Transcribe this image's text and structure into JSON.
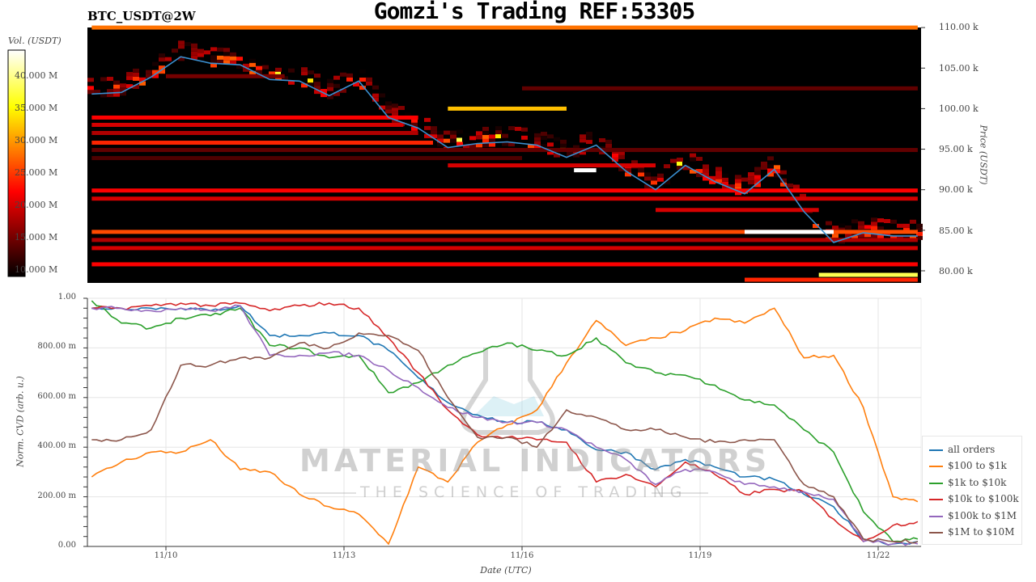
{
  "header": {
    "title": "Gomzi's Trading REF:53305",
    "pair": "BTC_USDT@2W"
  },
  "watermark": {
    "line1": "MATERIAL INDICATORS",
    "line2": "THE SCIENCE OF TRADING"
  },
  "chart_data": [
    {
      "type": "heatmap",
      "title": "BTC_USDT@2W",
      "ylabel": "Price (USDT)",
      "ylim_k": [
        78.5,
        110
      ],
      "yticks": [
        "80.00 k",
        "85.00 k",
        "90.00 k",
        "95.00 k",
        "100.00 k",
        "105.00 k",
        "110.00 k"
      ],
      "colorbar": {
        "label": "Vol. (USDT)",
        "range_M": [
          9,
          44
        ],
        "colormap": "hot",
        "ticks": [
          "10.000 M",
          "15.000 M",
          "20.000 M",
          "25.000 M",
          "30.000 M",
          "35.000 M",
          "40.000 M"
        ]
      },
      "price_line_color": "#3a8fd0",
      "liquidity_bands": [
        {
          "price_k": 110.0,
          "vol_M": 28,
          "from": "11/08 18:00",
          "to": "11/22 16:00"
        },
        {
          "price_k": 104.0,
          "vol_M": 15,
          "from": "11/10 00:00",
          "to": "11/12 00:00"
        },
        {
          "price_k": 102.5,
          "vol_M": 14,
          "from": "11/16 00:00",
          "to": "11/22 16:00"
        },
        {
          "price_k": 100.0,
          "vol_M": 32,
          "from": "11/14 18:00",
          "to": "11/16 18:00"
        },
        {
          "price_k": 98.9,
          "vol_M": 22,
          "from": "11/08 18:00",
          "to": "11/14 06:00"
        },
        {
          "price_k": 98.0,
          "vol_M": 20,
          "from": "11/08 18:00",
          "to": "11/14 00:00"
        },
        {
          "price_k": 97.0,
          "vol_M": 18,
          "from": "11/08 18:00",
          "to": "11/14 06:00"
        },
        {
          "price_k": 95.8,
          "vol_M": 24,
          "from": "11/08 18:00",
          "to": "11/14 12:00"
        },
        {
          "price_k": 94.9,
          "vol_M": 14,
          "from": "11/08 18:00",
          "to": "11/22 16:00"
        },
        {
          "price_k": 93.9,
          "vol_M": 13,
          "from": "11/08 18:00",
          "to": "11/16 00:00"
        },
        {
          "price_k": 93.0,
          "vol_M": 20,
          "from": "11/14 18:00",
          "to": "11/18 06:00"
        },
        {
          "price_k": 92.4,
          "vol_M": 44,
          "from": "11/16 21:00",
          "to": "11/17 06:00"
        },
        {
          "price_k": 89.9,
          "vol_M": 22,
          "from": "11/08 18:00",
          "to": "11/22 16:00"
        },
        {
          "price_k": 88.9,
          "vol_M": 20,
          "from": "11/08 18:00",
          "to": "11/22 16:00"
        },
        {
          "price_k": 87.5,
          "vol_M": 20,
          "from": "11/18 06:00",
          "to": "11/21 00:00"
        },
        {
          "price_k": 84.8,
          "vol_M": 26,
          "from": "11/08 18:00",
          "to": "11/22 16:00"
        },
        {
          "price_k": 84.8,
          "vol_M": 44,
          "from": "11/19 18:00",
          "to": "11/21 06:00"
        },
        {
          "price_k": 83.8,
          "vol_M": 18,
          "from": "11/08 18:00",
          "to": "11/22 16:00"
        },
        {
          "price_k": 82.8,
          "vol_M": 20,
          "from": "11/08 18:00",
          "to": "11/22 16:00"
        },
        {
          "price_k": 80.8,
          "vol_M": 22,
          "from": "11/08 18:00",
          "to": "11/22 16:00"
        },
        {
          "price_k": 79.5,
          "vol_M": 38,
          "from": "11/21 00:00",
          "to": "11/22 16:00"
        },
        {
          "price_k": 78.9,
          "vol_M": 24,
          "from": "11/19 18:00",
          "to": "11/22 16:00"
        }
      ],
      "price": {
        "x": [
          "11/08 18:00",
          "11/09 06:00",
          "11/09 18:00",
          "11/10 06:00",
          "11/10 18:00",
          "11/11 06:00",
          "11/11 18:00",
          "11/12 06:00",
          "11/12 18:00",
          "11/13 06:00",
          "11/13 18:00",
          "11/14 06:00",
          "11/14 18:00",
          "11/15 06:00",
          "11/15 18:00",
          "11/16 06:00",
          "11/16 18:00",
          "11/17 06:00",
          "11/17 18:00",
          "11/18 06:00",
          "11/18 18:00",
          "11/19 06:00",
          "11/19 18:00",
          "11/20 06:00",
          "11/20 18:00",
          "11/21 06:00",
          "11/21 18:00",
          "11/22 06:00",
          "11/22 16:00"
        ],
        "y_k": [
          101.8,
          102.0,
          103.9,
          106.4,
          105.6,
          105.4,
          103.6,
          103.4,
          101.6,
          103.4,
          98.9,
          97.6,
          95.2,
          95.7,
          95.9,
          95.5,
          94.0,
          95.5,
          92.3,
          90.0,
          93.0,
          91.0,
          89.5,
          92.5,
          87.3,
          83.5,
          84.7,
          84.3,
          84.3
        ]
      }
    },
    {
      "type": "line",
      "xlabel": "Date (UTC)",
      "ylabel": "Norm. CVD (arb. u.)",
      "ylim": [
        0,
        1
      ],
      "yticks": [
        "0.00",
        "200.00 m",
        "400.00 m",
        "600.00 m",
        "800.00 m",
        "1.00"
      ],
      "xticks": [
        "11/10",
        "11/13",
        "11/16",
        "11/19",
        "11/22"
      ],
      "grid": true,
      "legend_position": "right",
      "x": [
        "11/08 18:00",
        "11/09 06:00",
        "11/09 18:00",
        "11/10 06:00",
        "11/10 18:00",
        "11/11 06:00",
        "11/11 18:00",
        "11/12 06:00",
        "11/12 18:00",
        "11/13 06:00",
        "11/13 18:00",
        "11/14 06:00",
        "11/14 18:00",
        "11/15 06:00",
        "11/15 18:00",
        "11/16 06:00",
        "11/16 18:00",
        "11/17 06:00",
        "11/17 18:00",
        "11/18 06:00",
        "11/18 18:00",
        "11/19 06:00",
        "11/19 18:00",
        "11/20 06:00",
        "11/20 18:00",
        "11/21 06:00",
        "11/21 18:00",
        "11/22 06:00",
        "11/22 16:00"
      ],
      "series": [
        {
          "name": "all orders",
          "color": "#1f77b4",
          "values": [
            0.96,
            0.96,
            0.96,
            0.96,
            0.95,
            0.97,
            0.85,
            0.85,
            0.86,
            0.85,
            0.79,
            0.68,
            0.58,
            0.53,
            0.5,
            0.5,
            0.47,
            0.39,
            0.38,
            0.31,
            0.35,
            0.32,
            0.28,
            0.27,
            0.21,
            0.16,
            0.03,
            0.01,
            0.02
          ]
        },
        {
          "name": "$100 to $1k",
          "color": "#ff7f0e",
          "values": [
            0.28,
            0.34,
            0.38,
            0.38,
            0.43,
            0.31,
            0.3,
            0.21,
            0.16,
            0.13,
            0.01,
            0.32,
            0.26,
            0.42,
            0.49,
            0.55,
            0.74,
            0.91,
            0.81,
            0.84,
            0.87,
            0.92,
            0.9,
            0.96,
            0.76,
            0.77,
            0.56,
            0.2,
            0.18
          ]
        },
        {
          "name": "$1k to $10k",
          "color": "#2ca02c",
          "values": [
            0.99,
            0.9,
            0.88,
            0.92,
            0.93,
            0.96,
            0.81,
            0.8,
            0.76,
            0.77,
            0.62,
            0.66,
            0.73,
            0.78,
            0.82,
            0.79,
            0.77,
            0.84,
            0.74,
            0.7,
            0.69,
            0.65,
            0.59,
            0.57,
            0.47,
            0.38,
            0.14,
            0.02,
            0.03
          ]
        },
        {
          "name": "$10k to $100k",
          "color": "#d62728",
          "values": [
            0.96,
            0.96,
            0.97,
            0.98,
            0.97,
            0.98,
            0.95,
            0.97,
            0.98,
            0.96,
            0.84,
            0.7,
            0.55,
            0.45,
            0.44,
            0.43,
            0.42,
            0.26,
            0.29,
            0.24,
            0.34,
            0.29,
            0.21,
            0.23,
            0.22,
            0.11,
            0.02,
            0.085,
            0.1
          ]
        },
        {
          "name": "$100k to $1M",
          "color": "#9467bd",
          "values": [
            0.96,
            0.96,
            0.95,
            0.96,
            0.95,
            0.97,
            0.77,
            0.77,
            0.78,
            0.77,
            0.71,
            0.64,
            0.56,
            0.52,
            0.5,
            0.5,
            0.47,
            0.4,
            0.35,
            0.25,
            0.31,
            0.3,
            0.25,
            0.24,
            0.22,
            0.19,
            0.02,
            0.01,
            0.01
          ]
        },
        {
          "name": "$1M to $10M",
          "color": "#8c564b",
          "values": [
            0.43,
            0.43,
            0.47,
            0.73,
            0.73,
            0.76,
            0.76,
            0.82,
            0.8,
            0.86,
            0.85,
            0.79,
            0.6,
            0.44,
            0.44,
            0.4,
            0.55,
            0.52,
            0.47,
            0.47,
            0.44,
            0.42,
            0.43,
            0.43,
            0.25,
            0.2,
            0.03,
            0.02,
            0.02
          ]
        }
      ]
    }
  ]
}
